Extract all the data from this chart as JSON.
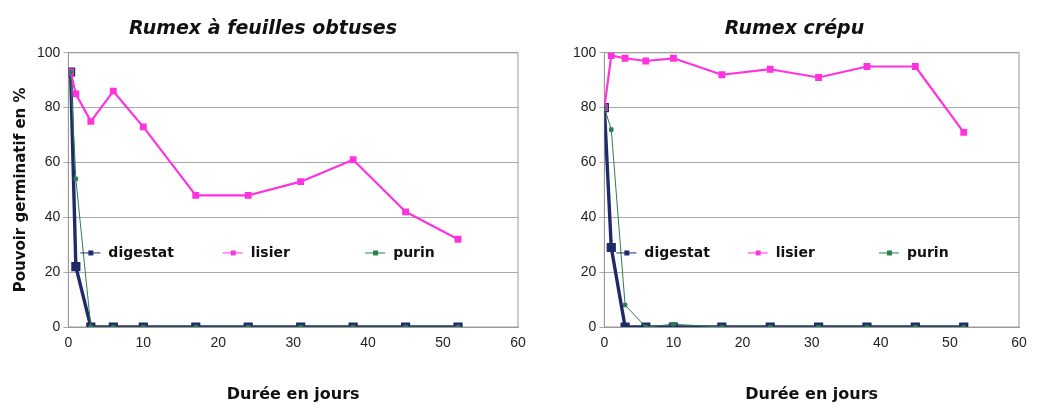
{
  "chart_data": [
    {
      "type": "line",
      "title": "Rumex à feuilles obtuses",
      "xlabel": "Durée en jours",
      "ylabel": "Pouvoir germinatif en %",
      "xlim": [
        0,
        60
      ],
      "xticks": [
        0,
        10,
        20,
        30,
        40,
        50,
        60
      ],
      "ylim": [
        0,
        100
      ],
      "yticks": [
        0,
        20,
        40,
        60,
        80,
        100
      ],
      "grid": "y",
      "legend": "center",
      "marker": "square",
      "series": [
        {
          "name": "digestat",
          "color": "#1f2a6b",
          "x": [
            0.3,
            1,
            3,
            6,
            10,
            17,
            24,
            31,
            38,
            45,
            52
          ],
          "values": [
            93,
            22,
            0,
            0,
            0,
            0,
            0,
            0,
            0,
            0,
            0
          ]
        },
        {
          "name": "lisier",
          "color": "#ff33dd",
          "x": [
            0.3,
            1,
            3,
            6,
            10,
            17,
            24,
            31,
            38,
            45,
            52
          ],
          "values": [
            93,
            85,
            75,
            86,
            73,
            48,
            48,
            53,
            61,
            42,
            32
          ]
        },
        {
          "name": "purin",
          "color": "#2e7d4f",
          "x": [
            0.3,
            1,
            3,
            6,
            10,
            17,
            24,
            31,
            38,
            45,
            52
          ],
          "values": [
            93,
            54,
            0,
            0,
            0,
            0,
            0,
            0,
            0,
            0,
            0
          ]
        }
      ]
    },
    {
      "type": "line",
      "title": "Rumex crépu",
      "xlabel": "Durée en jours",
      "xlim": [
        0,
        60
      ],
      "xticks": [
        0,
        10,
        20,
        30,
        40,
        50,
        60
      ],
      "ylim": [
        0,
        100
      ],
      "yticks": [
        0,
        20,
        40,
        60,
        80,
        100
      ],
      "grid": "y",
      "legend": "center",
      "marker": "square",
      "series": [
        {
          "name": "digestat",
          "color": "#1f2a6b",
          "x": [
            0,
            1,
            3,
            6,
            10,
            17,
            24,
            31,
            38,
            45,
            52
          ],
          "values": [
            80,
            29,
            0,
            0,
            0,
            0,
            0,
            0,
            0,
            0,
            0
          ]
        },
        {
          "name": "lisier",
          "color": "#ff33dd",
          "x": [
            0,
            1,
            3,
            6,
            10,
            17,
            24,
            31,
            38,
            45,
            52
          ],
          "values": [
            80,
            99,
            98,
            97,
            98,
            92,
            94,
            91,
            95,
            95,
            71
          ]
        },
        {
          "name": "purin",
          "color": "#2e7d4f",
          "x": [
            0,
            1,
            3,
            6,
            10,
            17,
            24,
            31,
            38,
            45,
            52
          ],
          "values": [
            80,
            72,
            8,
            0,
            1,
            0,
            0,
            0,
            0,
            0,
            0
          ]
        }
      ]
    }
  ]
}
